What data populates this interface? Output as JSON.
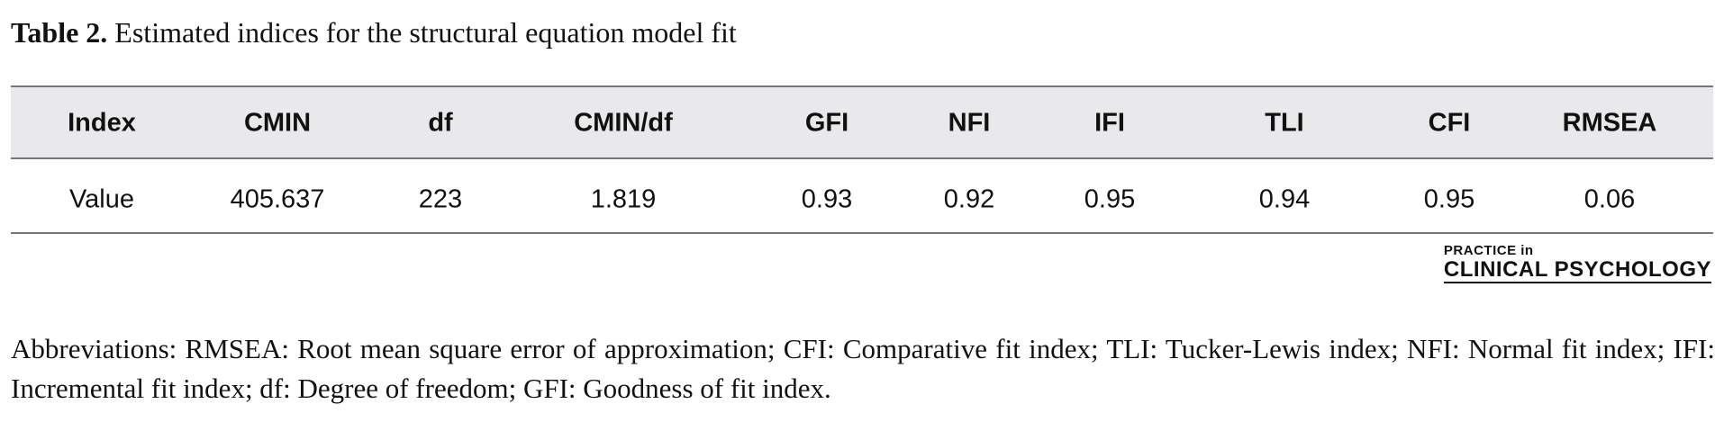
{
  "caption": {
    "label": "Table 2.",
    "text": "Estimated indices for the structural equation model fit"
  },
  "table": {
    "header": [
      "Index",
      "CMIN",
      "df",
      "CMIN/df",
      "GFI",
      "NFI",
      "IFI",
      "TLI",
      "CFI",
      "RMSEA"
    ],
    "rows": [
      [
        "Value",
        "405.637",
        "223",
        "1.819",
        "0.93",
        "0.92",
        "0.95",
        "0.94",
        "0.95",
        "0.06"
      ]
    ]
  },
  "logo": {
    "line1": "PRACTICE in",
    "line2": "CLINICAL PSYCHOLOGY"
  },
  "footnote": "Abbreviations: RMSEA: Root mean square error of approximation; CFI: Comparative fit index; TLI: Tucker-Lewis index; NFI: Normal fit index; IFI: Incremental fit index; df: Degree of freedom; GFI: Goodness of fit index."
}
